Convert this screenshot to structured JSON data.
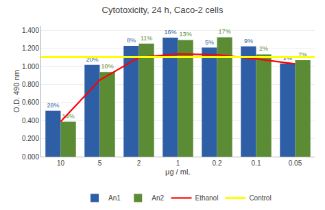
{
  "chart_data": {
    "type": "bar",
    "title": "Cytotoxicity, 24 h, Caco-2 cells",
    "xlabel": "μg / mL",
    "ylabel": "O.D. 490 nm",
    "categories": [
      "10",
      "5",
      "2",
      "1",
      "0.2",
      "0.1",
      "0.05"
    ],
    "series": [
      {
        "name": "An1",
        "type": "bar",
        "color": "#2E5EA6",
        "values": [
          0.51,
          1.02,
          1.23,
          1.32,
          1.21,
          1.225,
          1.035
        ],
        "annotations": [
          "28%",
          "20%",
          "8%",
          "16%",
          "5%",
          "9%",
          "2%"
        ]
      },
      {
        "name": "An2",
        "type": "bar",
        "color": "#5B8C35",
        "values": [
          0.39,
          0.94,
          1.255,
          1.295,
          1.325,
          1.135,
          1.07
        ],
        "annotations": [
          "14%",
          "10%",
          "11%",
          "13%",
          "17%",
          "2%",
          "7%"
        ]
      },
      {
        "name": "Ethanol",
        "type": "line",
        "color": "#FF0000",
        "values": [
          0.39,
          0.85,
          1.1,
          1.14,
          1.13,
          1.085,
          1.03
        ]
      },
      {
        "name": "Control",
        "type": "hline",
        "color": "#FFFF00",
        "value": 1.105
      }
    ],
    "ylim": [
      0.0,
      1.45
    ],
    "yticks": [
      {
        "value": 0.0,
        "label": "0.000"
      },
      {
        "value": 0.2,
        "label": "0.200"
      },
      {
        "value": 0.4,
        "label": "0.400"
      },
      {
        "value": 0.6,
        "label": "0.600"
      },
      {
        "value": 0.8,
        "label": "0.800"
      },
      {
        "value": 1.0,
        "label": "1.000"
      },
      {
        "value": 1.2,
        "label": "1.200"
      },
      {
        "value": 1.4,
        "label": "1.400"
      }
    ],
    "grid": true,
    "legend": "bottom"
  }
}
